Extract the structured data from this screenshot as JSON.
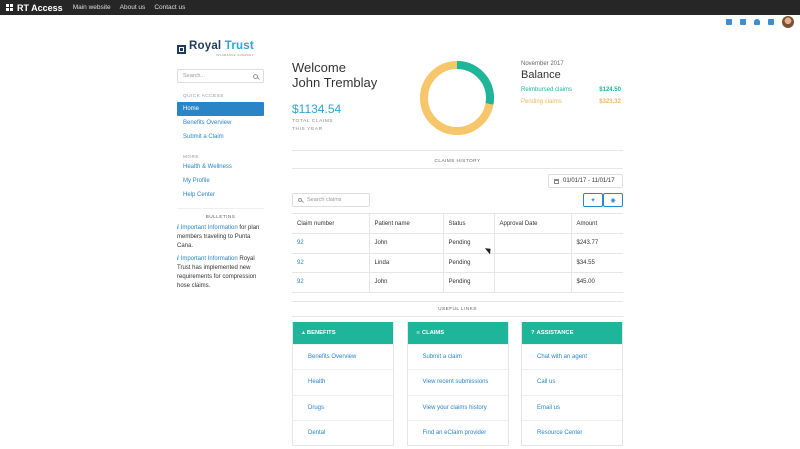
{
  "topbar": {
    "brand": "RT Access",
    "nav": [
      "Main website",
      "About us",
      "Contact us"
    ]
  },
  "top_icons": [
    "mail-icon",
    "bell-icon",
    "person-icon",
    "gear-icon"
  ],
  "logo": {
    "name_part1": "Royal",
    "name_part2": "Trust",
    "subtitle": "INSURANCE COMPANY"
  },
  "sidebar": {
    "search_placeholder": "Search...",
    "quick_access_label": "QUICK ACCESS",
    "quick_access": [
      "Home",
      "Benefits Overview",
      "Submit a Claim"
    ],
    "more_label": "MORE",
    "more": [
      "Health & Wellness",
      "My Profile",
      "Help Center"
    ],
    "bulletins_title": "BULLETINS",
    "bulletins": [
      {
        "title": "Important Information",
        "text": "for plan members traveling to Punta Cana."
      },
      {
        "title": "Important Information",
        "text": "Royal Trust has implemented new requirements for compression hose claims."
      }
    ]
  },
  "welcome": {
    "line1": "Welcome",
    "line2": "John Tremblay",
    "amount": "$1134.54",
    "caption_line1": "TOTAL CLAIMS",
    "caption_line2": "THIS YEAR"
  },
  "donut": {
    "reimbursed": 124.5,
    "pending": 323.32,
    "reimbursed_color": "#1fb59a",
    "pending_color": "#f7c66b"
  },
  "balance": {
    "month": "November 2017",
    "title": "Balance",
    "reimbursed_label": "Reimbursed claims",
    "reimbursed_value": "$124.50",
    "pending_label": "Pending claims",
    "pending_value": "$323.32"
  },
  "claims_history": {
    "title": "CLAIMS HISTORY",
    "date_range": "01/01/17 - 11/01/17",
    "search_placeholder": "Search claims",
    "columns": [
      "Claim number",
      "Patient name",
      "Status",
      "Approval Date",
      "Amount"
    ],
    "rows": [
      [
        "92",
        "John",
        "Pending",
        "",
        "$243.77"
      ],
      [
        "92",
        "Linda",
        "Pending",
        "",
        "$34.55"
      ],
      [
        "92",
        "John",
        "Pending",
        "",
        "$45.00"
      ]
    ]
  },
  "useful_links": {
    "title": "USEFUL LINKS",
    "cards": [
      {
        "title": "BENEFITS",
        "items": [
          "Benefits Overview",
          "Health",
          "Drugs",
          "Dental"
        ]
      },
      {
        "title": "CLAIMS",
        "items": [
          "Submit a claim",
          "View recent submissions",
          "View your claims history",
          "Find an eClaim provider"
        ]
      },
      {
        "title": "ASSISTANCE",
        "items": [
          "Chat with an agent",
          "Call us",
          "Email us",
          "Resource Center"
        ]
      }
    ]
  },
  "colors": {
    "accent": "#2a85c7",
    "teal": "#1fb59a",
    "orange": "#f7c66b",
    "topbar": "#262626"
  }
}
